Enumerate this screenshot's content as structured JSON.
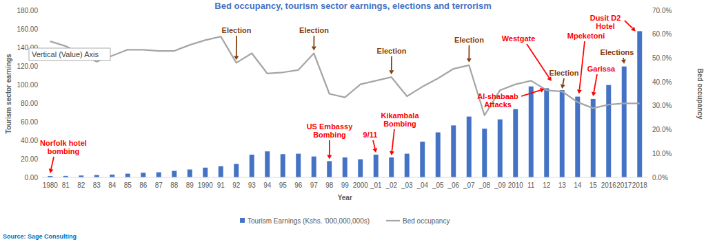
{
  "chart_data": {
    "type": "bar",
    "title": "Bed occupancy, tourism sector earnings, elections and terrorism",
    "x_label": "Year",
    "y_label": "Tourism sector earnings",
    "y2_label": "Bed occupancy",
    "tooltip": "Vertical (Value) Axis",
    "source": "Source: Sage Consulting",
    "categories": [
      "1980",
      "81",
      "82",
      "83",
      "84",
      "85",
      "86",
      "87",
      "88",
      "89",
      "1990",
      "91",
      "92",
      "93",
      "94",
      "95",
      "96",
      "97",
      "98",
      "99",
      "2000",
      "_01",
      "_02",
      "_03",
      "_04",
      "_05",
      "_06",
      "_07",
      "_08",
      "_09",
      "2010",
      "11",
      "12",
      "13",
      "14",
      "15",
      "2016",
      "2017",
      "2018"
    ],
    "series": [
      {
        "name": "Tourism Earnings (Kshs. '000,000,000s)",
        "type": "bar",
        "color": "#4472c4",
        "values": [
          1.5,
          1.6,
          2,
          2.5,
          3,
          4,
          5,
          5.5,
          7,
          8.5,
          10.5,
          12,
          14.5,
          24.5,
          28,
          25,
          25.5,
          22.5,
          17.5,
          21.5,
          19.5,
          24.5,
          21.5,
          25.5,
          38.5,
          48.5,
          56,
          65.5,
          52.5,
          62.5,
          73.5,
          98,
          96,
          94,
          87,
          84.5,
          99.5,
          119.5,
          157.5
        ]
      },
      {
        "name": "Bed occupancy",
        "type": "line",
        "axis": "y2",
        "color": "#a5a5a5",
        "marker": "none",
        "values": [
          57,
          55,
          51.5,
          48.5,
          51,
          53.5,
          53.5,
          53,
          53,
          55.5,
          57.5,
          59,
          48,
          52,
          43.5,
          44,
          45,
          52,
          35,
          33.5,
          39,
          40.5,
          42,
          34,
          38,
          41.5,
          45.5,
          47,
          26,
          36.5,
          39,
          40.5,
          36.5,
          36,
          31.5,
          29,
          30.5,
          31,
          31
        ]
      }
    ],
    "ylim": [
      0,
      180
    ],
    "yticks": [
      {
        "value": 0,
        "label": "0.00"
      },
      {
        "value": 20,
        "label": "20.00"
      },
      {
        "value": 40,
        "label": "40.00"
      },
      {
        "value": 60,
        "label": "60.00"
      },
      {
        "value": 80,
        "label": "80.00"
      },
      {
        "value": 100,
        "label": "100.00"
      },
      {
        "value": 120,
        "label": "120.00"
      },
      {
        "value": 140,
        "label": "140.00"
      },
      {
        "value": 160,
        "label": "160.00"
      },
      {
        "value": 180,
        "label": "180.00"
      }
    ],
    "y2lim": [
      0,
      70
    ],
    "y2ticks": [
      {
        "value": 0,
        "label": "0.0%"
      },
      {
        "value": 10,
        "label": "10.0%"
      },
      {
        "value": 20,
        "label": "20.0%"
      },
      {
        "value": 30,
        "label": "30.0%"
      },
      {
        "value": 40,
        "label": "40.0%"
      },
      {
        "value": 50,
        "label": "50.0%"
      },
      {
        "value": 60,
        "label": "60.0%"
      },
      {
        "value": 70,
        "label": "70.0%"
      }
    ],
    "grid": false,
    "legend": "bottom",
    "annotations": [
      {
        "text": [
          "Norfolk hotel",
          "bombing"
        ],
        "x": "1980",
        "color": "#ff0000"
      },
      {
        "text": [
          "Election"
        ],
        "x": "92",
        "color": "#843c0c"
      },
      {
        "text": [
          "Election"
        ],
        "x": "97",
        "color": "#843c0c"
      },
      {
        "text": [
          "US Embassy",
          "Bombing"
        ],
        "x": "98",
        "color": "#ff0000"
      },
      {
        "text": [
          "9/11"
        ],
        "x": "_01",
        "color": "#ff0000"
      },
      {
        "text": [
          "Kikambala",
          "Bombing"
        ],
        "x": "_02",
        "color": "#ff0000"
      },
      {
        "text": [
          "Election"
        ],
        "x": "_02",
        "color": "#843c0c"
      },
      {
        "text": [
          "Election"
        ],
        "x": "_07",
        "color": "#843c0c"
      },
      {
        "text": [
          "Al-shabaab",
          "Attacks"
        ],
        "x": "12",
        "color": "#ff0000"
      },
      {
        "text": [
          "Westgate"
        ],
        "x": "13",
        "color": "#ff0000"
      },
      {
        "text": [
          "Election"
        ],
        "x": "13",
        "color": "#843c0c"
      },
      {
        "text": [
          "Mpeketoni"
        ],
        "x": "14",
        "color": "#ff0000"
      },
      {
        "text": [
          "Garissa"
        ],
        "x": "15",
        "color": "#ff0000"
      },
      {
        "text": [
          "Elections"
        ],
        "x": "2017",
        "color": "#843c0c"
      },
      {
        "text": [
          "Dusit D2",
          "Hotel"
        ],
        "x": "2018",
        "color": "#ff0000"
      }
    ]
  }
}
